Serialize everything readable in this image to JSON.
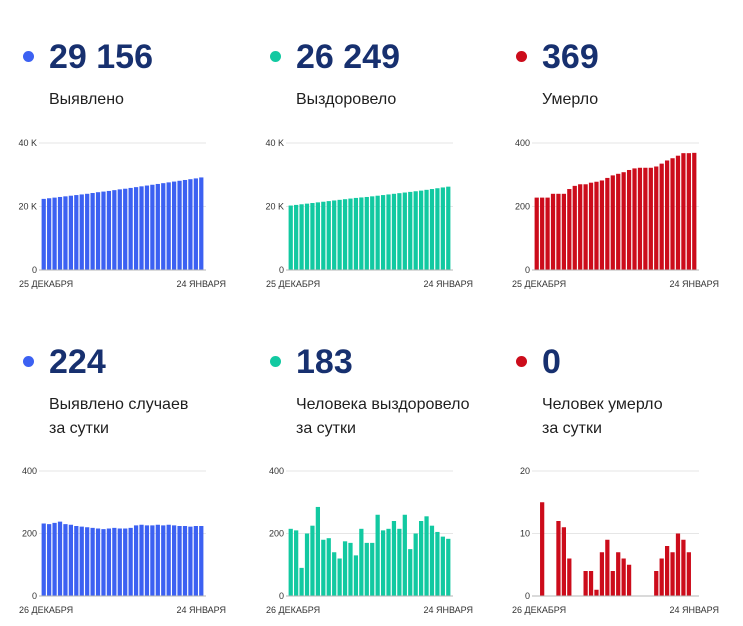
{
  "colors": {
    "blue": "#3c61f2",
    "teal": "#12c9a1",
    "red": "#cc0c1b",
    "number": "#17306f",
    "grid": "#e6e6e6",
    "axis": "#b5b5b5"
  },
  "panels": [
    {
      "value": "29 156",
      "label": [
        "Выявлено"
      ],
      "color": "#3c61f2",
      "chart_data": {
        "type": "bar",
        "x_start": "25 ДЕКАБРЯ",
        "x_end": "24 ЯНВАРЯ",
        "ytick_labels": [
          "0",
          "20 K",
          "40 K"
        ],
        "yticks": [
          0,
          20000,
          40000
        ],
        "ylim": [
          0,
          40000
        ],
        "grid": true,
        "values": [
          22400,
          22600,
          22800,
          23000,
          23200,
          23400,
          23600,
          23800,
          24000,
          24250,
          24500,
          24700,
          24900,
          25150,
          25400,
          25600,
          25850,
          26100,
          26350,
          26600,
          26850,
          27100,
          27350,
          27600,
          27850,
          28100,
          28350,
          28600,
          28850,
          29156
        ]
      }
    },
    {
      "value": "26 249",
      "label": [
        "Выздоровело"
      ],
      "color": "#12c9a1",
      "chart_data": {
        "type": "bar",
        "x_start": "25 ДЕКАБРЯ",
        "x_end": "24 ЯНВАРЯ",
        "ytick_labels": [
          "0",
          "20 K",
          "40 K"
        ],
        "yticks": [
          0,
          20000,
          40000
        ],
        "ylim": [
          0,
          40000
        ],
        "grid": true,
        "values": [
          20300,
          20500,
          20700,
          20900,
          21100,
          21300,
          21500,
          21700,
          21900,
          22100,
          22300,
          22500,
          22700,
          22850,
          23000,
          23200,
          23400,
          23600,
          23800,
          24000,
          24200,
          24400,
          24600,
          24800,
          25000,
          25250,
          25500,
          25750,
          26000,
          26249
        ]
      }
    },
    {
      "value": "369",
      "label": [
        "Умерло"
      ],
      "color": "#cc0c1b",
      "chart_data": {
        "type": "bar",
        "x_start": "25 ДЕКАБРЯ",
        "x_end": "24 ЯНВАРЯ",
        "ytick_labels": [
          "0",
          "200",
          "400"
        ],
        "yticks": [
          0,
          200,
          400
        ],
        "ylim": [
          0,
          400
        ],
        "grid": true,
        "values": [
          228,
          228,
          228,
          240,
          240,
          240,
          255,
          265,
          270,
          270,
          275,
          278,
          282,
          290,
          298,
          303,
          308,
          315,
          320,
          322,
          322,
          322,
          326,
          335,
          345,
          352,
          360,
          368,
          368,
          369
        ]
      }
    },
    {
      "value": "224",
      "label": [
        "Выявлено случаев",
        "за сутки"
      ],
      "color": "#3c61f2",
      "chart_data": {
        "type": "bar",
        "x_start": "26 ДЕКАБРЯ",
        "x_end": "24 ЯНВАРЯ",
        "ytick_labels": [
          "0",
          "200",
          "400"
        ],
        "yticks": [
          0,
          200,
          400
        ],
        "ylim": [
          0,
          400
        ],
        "grid": true,
        "values": [
          232,
          230,
          234,
          238,
          230,
          228,
          224,
          222,
          220,
          218,
          216,
          214,
          216,
          218,
          216,
          216,
          218,
          226,
          228,
          226,
          226,
          228,
          226,
          228,
          226,
          224,
          224,
          222,
          224,
          224
        ]
      }
    },
    {
      "value": "183",
      "label": [
        "Человека выздоровело",
        "за сутки"
      ],
      "color": "#12c9a1",
      "chart_data": {
        "type": "bar",
        "x_start": "26 ДЕКАБРЯ",
        "x_end": "24 ЯНВАРЯ",
        "ytick_labels": [
          "0",
          "200",
          "400"
        ],
        "yticks": [
          0,
          200,
          400
        ],
        "ylim": [
          0,
          400
        ],
        "grid": true,
        "values": [
          215,
          210,
          90,
          200,
          225,
          285,
          180,
          185,
          140,
          120,
          175,
          170,
          130,
          215,
          170,
          170,
          260,
          210,
          215,
          240,
          215,
          260,
          150,
          200,
          240,
          255,
          225,
          205,
          190,
          183
        ]
      }
    },
    {
      "value": "0",
      "label": [
        "Человек умерло",
        "за сутки"
      ],
      "color": "#cc0c1b",
      "chart_data": {
        "type": "bar",
        "x_start": "26 ДЕКАБРЯ",
        "x_end": "24 ЯНВАРЯ",
        "ytick_labels": [
          "0",
          "10",
          "20"
        ],
        "yticks": [
          0,
          10,
          20
        ],
        "ylim": [
          0,
          20
        ],
        "grid": true,
        "values": [
          0,
          15,
          0,
          0,
          12,
          11,
          6,
          0,
          0,
          4,
          4,
          1,
          7,
          9,
          4,
          7,
          6,
          5,
          0,
          0,
          0,
          0,
          4,
          6,
          8,
          7,
          10,
          9,
          7,
          0
        ]
      }
    }
  ]
}
